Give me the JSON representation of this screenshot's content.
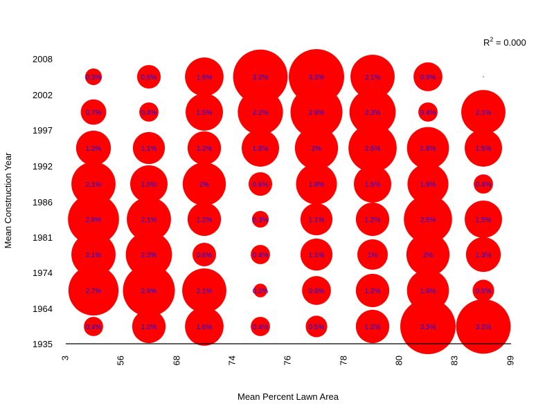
{
  "chart_data": {
    "type": "bubble-grid",
    "xlabel": "Mean Percent Lawn Area",
    "ylabel": "Mean Construction Year",
    "annotation": {
      "prefix": "R",
      "superscript": "2",
      "suffix": " = 0.000"
    },
    "x_ticks": [
      "3",
      "56",
      "68",
      "74",
      "76",
      "78",
      "80",
      "83",
      "99"
    ],
    "y_ticks": [
      "1935",
      "1964",
      "1974",
      "1981",
      "1986",
      "1992",
      "1997",
      "2002",
      "2008"
    ],
    "colors": {
      "bubble": "#ff0000",
      "label": "#0000ff",
      "axis": "#000000"
    },
    "cells": [
      [
        {
          "v": 0.4,
          "t": "0.4%"
        },
        {
          "v": 1.2,
          "t": "1.2%"
        },
        {
          "v": 1.6,
          "t": "1.6%"
        },
        {
          "v": 0.4,
          "t": "0.4%"
        },
        {
          "v": 0.5,
          "t": "0.5%"
        },
        {
          "v": 1.2,
          "t": "1.2%"
        },
        {
          "v": 3.3,
          "t": "3.3%"
        },
        {
          "v": 3.2,
          "t": "3.2%"
        }
      ],
      [
        {
          "v": 2.7,
          "t": "2.7%"
        },
        {
          "v": 2.9,
          "t": "2.9%"
        },
        {
          "v": 2.1,
          "t": "2.1%"
        },
        {
          "v": 0.2,
          "t": "0.2%"
        },
        {
          "v": 0.9,
          "t": "0.9%"
        },
        {
          "v": 1.2,
          "t": "1.2%"
        },
        {
          "v": 1.9,
          "t": "1.9%"
        },
        {
          "v": 0.5,
          "t": "0.5%"
        }
      ],
      [
        {
          "v": 2.1,
          "t": "2.1%"
        },
        {
          "v": 2.3,
          "t": "2.3%"
        },
        {
          "v": 0.6,
          "t": "0.6%"
        },
        {
          "v": 0.4,
          "t": "0.4%"
        },
        {
          "v": 1.1,
          "t": "1.1%"
        },
        {
          "v": 1.0,
          "t": "1%"
        },
        {
          "v": 2.0,
          "t": "2%"
        },
        {
          "v": 1.3,
          "t": "1.3%"
        }
      ],
      [
        {
          "v": 2.8,
          "t": "2.8%"
        },
        {
          "v": 2.1,
          "t": "2.1%"
        },
        {
          "v": 1.2,
          "t": "1.2%"
        },
        {
          "v": 0.3,
          "t": "0.3%"
        },
        {
          "v": 1.1,
          "t": "1.1%"
        },
        {
          "v": 1.2,
          "t": "1.2%"
        },
        {
          "v": 2.5,
          "t": "2.5%"
        },
        {
          "v": 1.5,
          "t": "1.5%"
        }
      ],
      [
        {
          "v": 2.1,
          "t": "2.1%"
        },
        {
          "v": 1.5,
          "t": "1.5%"
        },
        {
          "v": 2.0,
          "t": "2%"
        },
        {
          "v": 0.6,
          "t": "0.6%"
        },
        {
          "v": 1.8,
          "t": "1.8%"
        },
        {
          "v": 1.5,
          "t": "1.5%"
        },
        {
          "v": 1.8,
          "t": "1.8%"
        },
        {
          "v": 0.4,
          "t": "0.4%"
        }
      ],
      [
        {
          "v": 1.3,
          "t": "1.3%"
        },
        {
          "v": 1.1,
          "t": "1.1%"
        },
        {
          "v": 1.2,
          "t": "1.2%"
        },
        {
          "v": 1.5,
          "t": "1.5%"
        },
        {
          "v": 2.0,
          "t": "2%"
        },
        {
          "v": 2.5,
          "t": "2.5%"
        },
        {
          "v": 1.9,
          "t": "1.9%"
        },
        {
          "v": 1.5,
          "t": "1.5%"
        }
      ],
      [
        {
          "v": 0.7,
          "t": "0.7%"
        },
        {
          "v": 0.4,
          "t": "0.4%"
        },
        {
          "v": 1.5,
          "t": "1.5%"
        },
        {
          "v": 2.2,
          "t": "2.2%"
        },
        {
          "v": 2.9,
          "t": "2.9%"
        },
        {
          "v": 2.3,
          "t": "2.3%"
        },
        {
          "v": 0.4,
          "t": "0.4%"
        },
        {
          "v": 2.1,
          "t": "2.1%"
        }
      ],
      [
        {
          "v": 0.3,
          "t": "0.3%"
        },
        {
          "v": 0.6,
          "t": "0.6%"
        },
        {
          "v": 1.6,
          "t": "1.6%"
        },
        {
          "v": 3.2,
          "t": "3.2%"
        },
        {
          "v": 3.3,
          "t": "3.3%"
        },
        {
          "v": 2.1,
          "t": "2.1%"
        },
        {
          "v": 0.9,
          "t": "0.9%"
        },
        {
          "v": 0.0,
          "t": ""
        }
      ]
    ]
  }
}
